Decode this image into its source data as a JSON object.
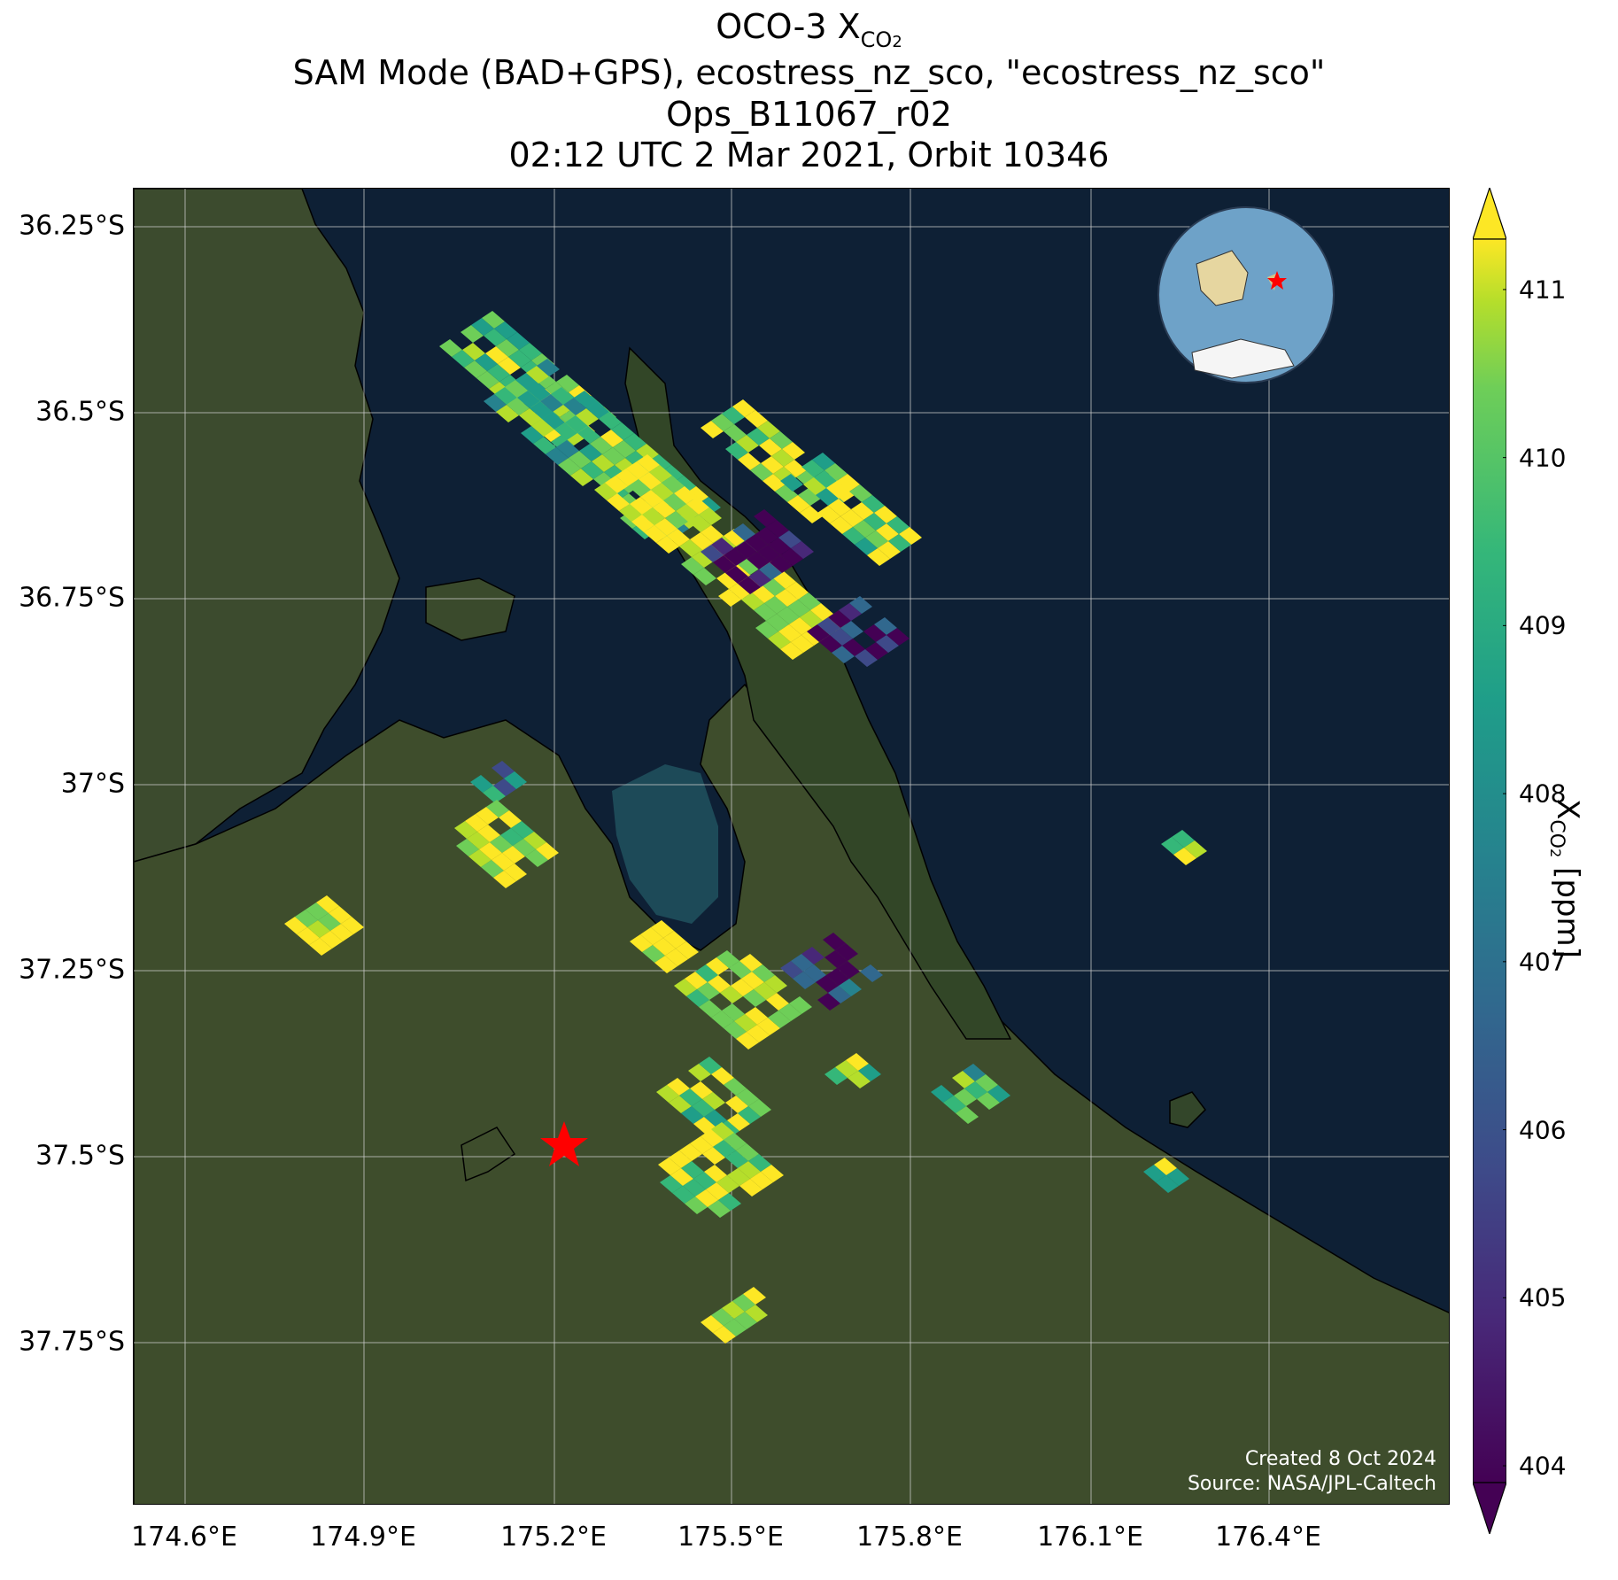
{
  "title": {
    "line1_prefix": "OCO-3 X",
    "line1_sub": "CO",
    "line1_subsub": "2",
    "line2": "SAM Mode (BAD+GPS), ecostress_nz_sco, \"ecostress_nz_sco\"",
    "line3": "Ops_B11067_r02",
    "line4": "02:12 UTC 2 Mar 2021, Orbit 10346"
  },
  "map": {
    "lat_ticks": [
      "36.25°S",
      "36.5°S",
      "36.75°S",
      "37°S",
      "37.25°S",
      "37.5°S",
      "37.75°S"
    ],
    "lon_ticks": [
      "174.6°E",
      "174.9°E",
      "175.2°E",
      "175.5°E",
      "175.8°E",
      "176.1°E",
      "176.4°E"
    ],
    "credit_line1": "Created 8 Oct 2024",
    "credit_line2": "Source: NASA/JPL-Caltech",
    "target_marker": "red-star",
    "inset": "globe-locator",
    "colors": {
      "ocean": "#0e2035",
      "land": "#3a4a2c",
      "coastline": "#000000",
      "grid": "#cfcfcf",
      "star": "#ff0000"
    }
  },
  "colorbar": {
    "label_prefix": "X",
    "label_sub": "CO",
    "label_subsub": "2",
    "label_suffix": " [ppm]",
    "ticks": [
      "404",
      "405",
      "406",
      "407",
      "408",
      "409",
      "410",
      "411"
    ],
    "colormap": "viridis",
    "min": 403.9,
    "max": 411.3
  }
}
